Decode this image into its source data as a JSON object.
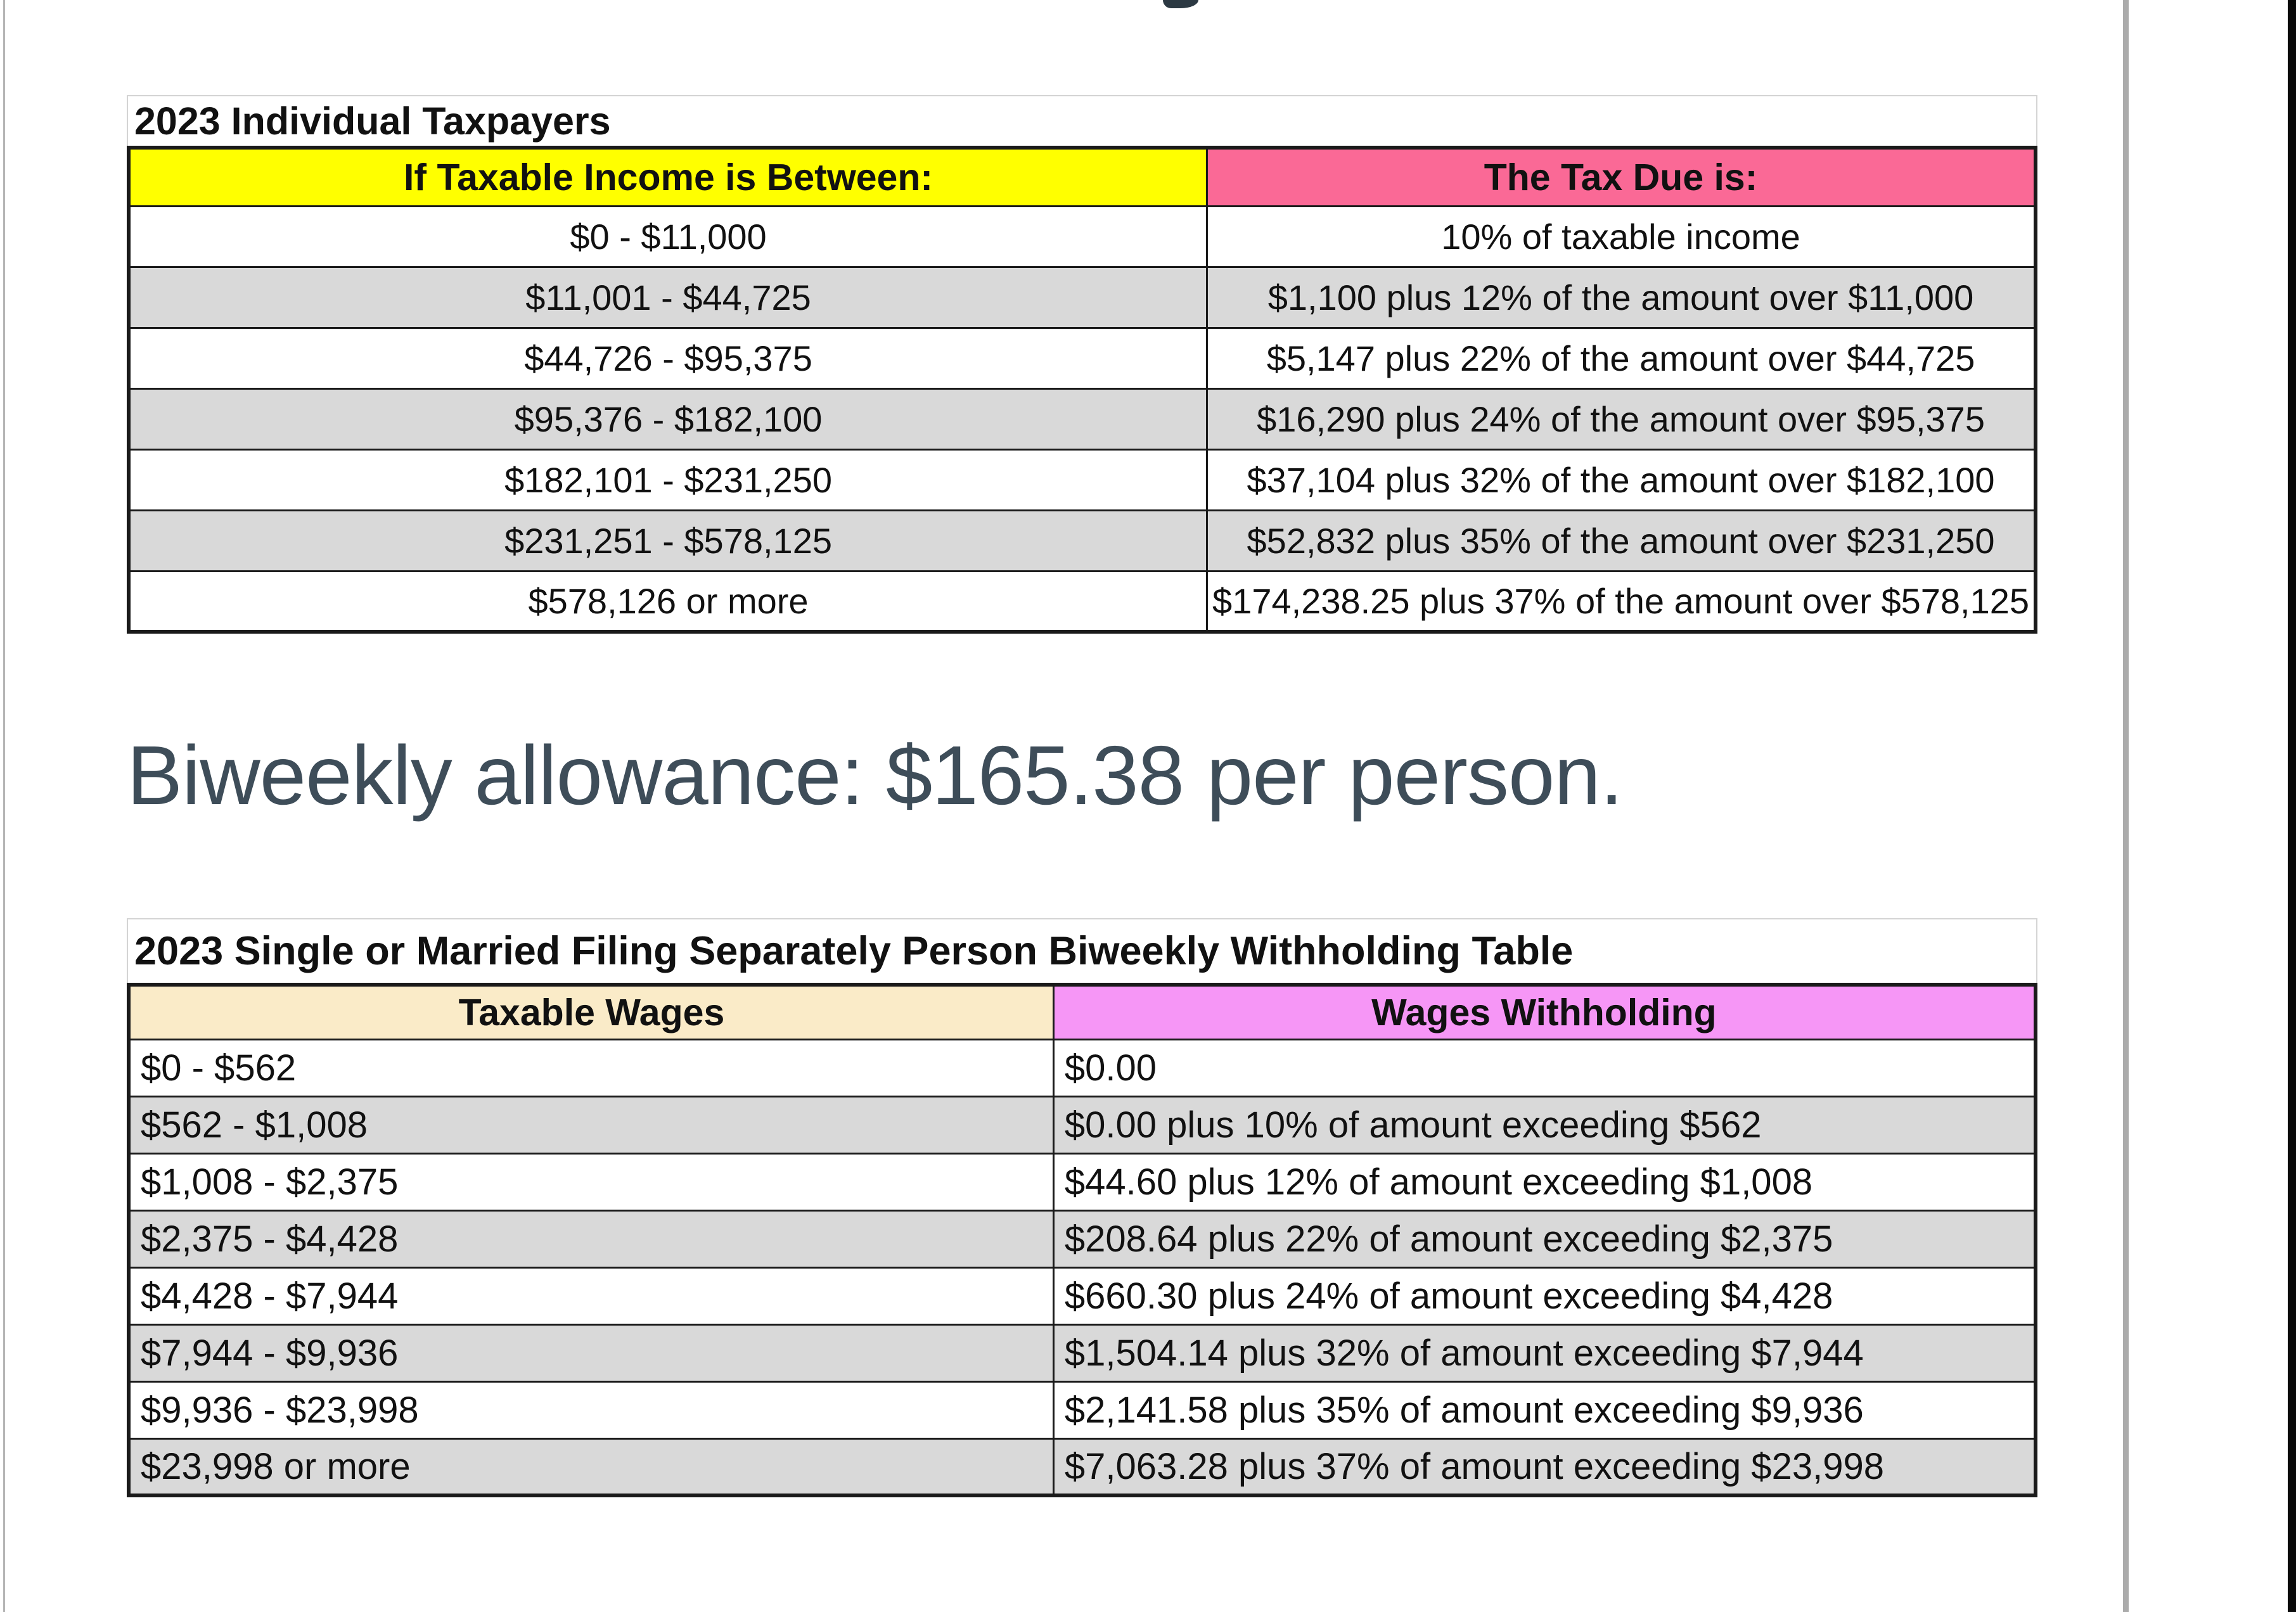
{
  "colors": {
    "yellow": "#FFFF00",
    "pink": "#FA6996",
    "tan": "#FAEBC8",
    "violet": "#F696F6",
    "row-gray": "#D9D9D9",
    "heading-text": "#3E4D59"
  },
  "table1": {
    "title": "2023 Individual Taxpayers",
    "headers": [
      "If Taxable Income is Between:",
      "The Tax Due is:"
    ],
    "rows": [
      [
        "$0 - $11,000",
        "10% of taxable income"
      ],
      [
        "$11,001 - $44,725",
        "$1,100 plus 12% of the amount over $11,000"
      ],
      [
        "$44,726 - $95,375",
        "$5,147 plus 22% of the amount over $44,725"
      ],
      [
        "$95,376 - $182,100",
        "$16,290 plus 24% of the amount over $95,375"
      ],
      [
        "$182,101 - $231,250",
        "$37,104 plus 32% of the amount over $182,100"
      ],
      [
        "$231,251 - $578,125",
        "$52,832 plus 35% of the amount over $231,250"
      ],
      [
        "$578,126 or more",
        "$174,238.25 plus 37% of the amount over $578,125"
      ]
    ]
  },
  "allowance_heading": "Biweekly allowance: $165.38 per person.",
  "table2": {
    "title": "2023 Single or Married Filing Separately Person Biweekly Withholding Table",
    "headers": [
      "Taxable Wages",
      "Wages Withholding"
    ],
    "rows": [
      [
        "$0 - $562",
        "$0.00"
      ],
      [
        "$562 - $1,008",
        "$0.00 plus 10% of amount exceeding $562"
      ],
      [
        "$1,008 - $2,375",
        "$44.60 plus 12% of amount exceeding $1,008"
      ],
      [
        "$2,375 - $4,428",
        "$208.64 plus 22% of amount exceeding $2,375"
      ],
      [
        "$4,428 - $7,944",
        "$660.30 plus 24% of amount exceeding $4,428"
      ],
      [
        "$7,944 - $9,936",
        "$1,504.14 plus 32% of amount exceeding $7,944"
      ],
      [
        "$9,936 - $23,998",
        "$2,141.58 plus 35% of amount exceeding $9,936"
      ],
      [
        "$23,998 or more",
        "$7,063.28 plus 37% of amount exceeding $23,998"
      ]
    ]
  }
}
